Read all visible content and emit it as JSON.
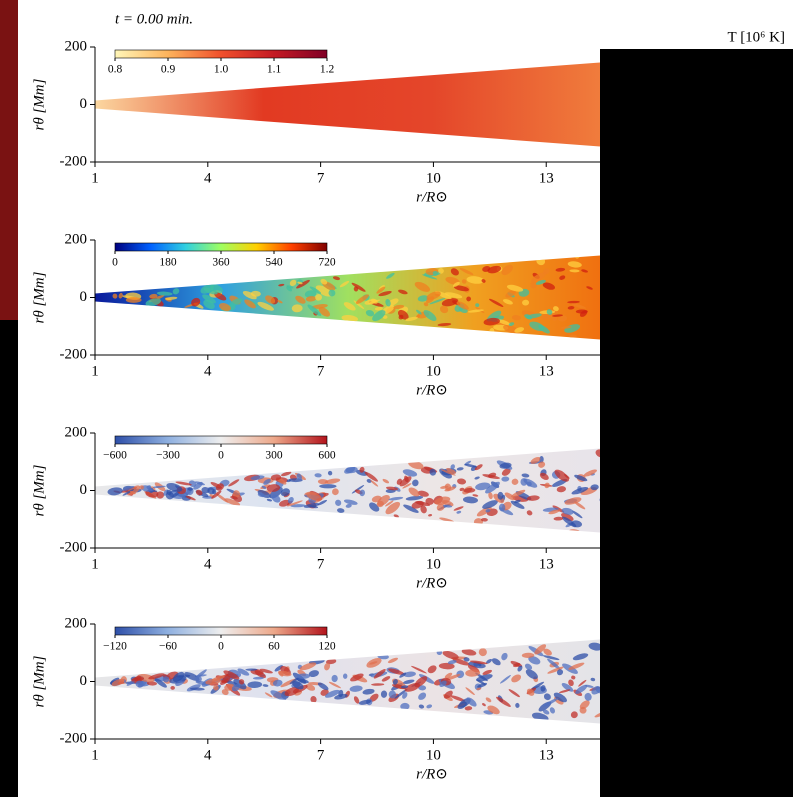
{
  "chart_data": [
    {
      "type": "image",
      "title": "t = 0.00 min.",
      "xlabel": "r/R⊙",
      "ylabel": "rθ [Mm]",
      "xlim": [
        1,
        14.43
      ],
      "ylim": [
        -200,
        200
      ],
      "xticks": [
        1,
        4,
        7,
        10,
        13
      ],
      "yticks": [
        -200,
        0,
        200
      ],
      "colorbar": {
        "label": "T [10⁶ K]",
        "lim": [
          0.8,
          1.2
        ],
        "ticks": [
          0.8,
          0.9,
          {
            "value": 1.0,
            "label": "1.0"
          },
          1.1,
          1.2
        ],
        "colors": [
          "#fff6b8",
          "#fdb35c",
          "#f0502c",
          "#c41a24",
          "#800026"
        ]
      }
    },
    {
      "type": "image",
      "xlabel": "r/R⊙",
      "ylabel": "rθ [Mm]",
      "xlim": [
        1,
        14.43
      ],
      "ylim": [
        -200,
        200
      ],
      "xticks": [
        1,
        4,
        7,
        10,
        13
      ],
      "yticks": [
        -200,
        0,
        200
      ],
      "colorbar": {
        "lim": [
          0,
          720
        ],
        "ticks": [
          0,
          180,
          360,
          540,
          720
        ],
        "colors": [
          "#00007f",
          "#0060ff",
          "#30d0e0",
          "#9fff60",
          "#ffd000",
          "#ff4000",
          "#800000"
        ]
      }
    },
    {
      "type": "image",
      "xlabel": "r/R⊙",
      "ylabel": "rθ [Mm]",
      "xlim": [
        1,
        14.43
      ],
      "ylim": [
        -200,
        200
      ],
      "xticks": [
        1,
        4,
        7,
        10,
        13
      ],
      "yticks": [
        -200,
        0,
        200
      ],
      "colorbar": {
        "lim": [
          -600,
          600
        ],
        "ticks": [
          {
            "value": -600,
            "label": "−600"
          },
          {
            "value": -300,
            "label": "−300"
          },
          0,
          300,
          600
        ],
        "colors": [
          "#2e4fa8",
          "#8fb0e0",
          "#eeeeee",
          "#eda88a",
          "#b3141c"
        ]
      }
    },
    {
      "type": "image",
      "xlabel": "r/R⊙",
      "ylabel": "rθ [Mm]",
      "xlim": [
        1,
        14.43
      ],
      "ylim": [
        -200,
        200
      ],
      "xticks": [
        1,
        4,
        7,
        10,
        13
      ],
      "yticks": [
        -200,
        0,
        200
      ],
      "colorbar": {
        "lim": [
          -120,
          120
        ],
        "ticks": [
          {
            "value": -120,
            "label": "−120"
          },
          {
            "value": -60,
            "label": "−60"
          },
          0,
          60,
          120
        ],
        "colors": [
          "#2e4fa8",
          "#8fb0e0",
          "#eeeeee",
          "#eda88a",
          "#b3141c"
        ]
      }
    }
  ]
}
